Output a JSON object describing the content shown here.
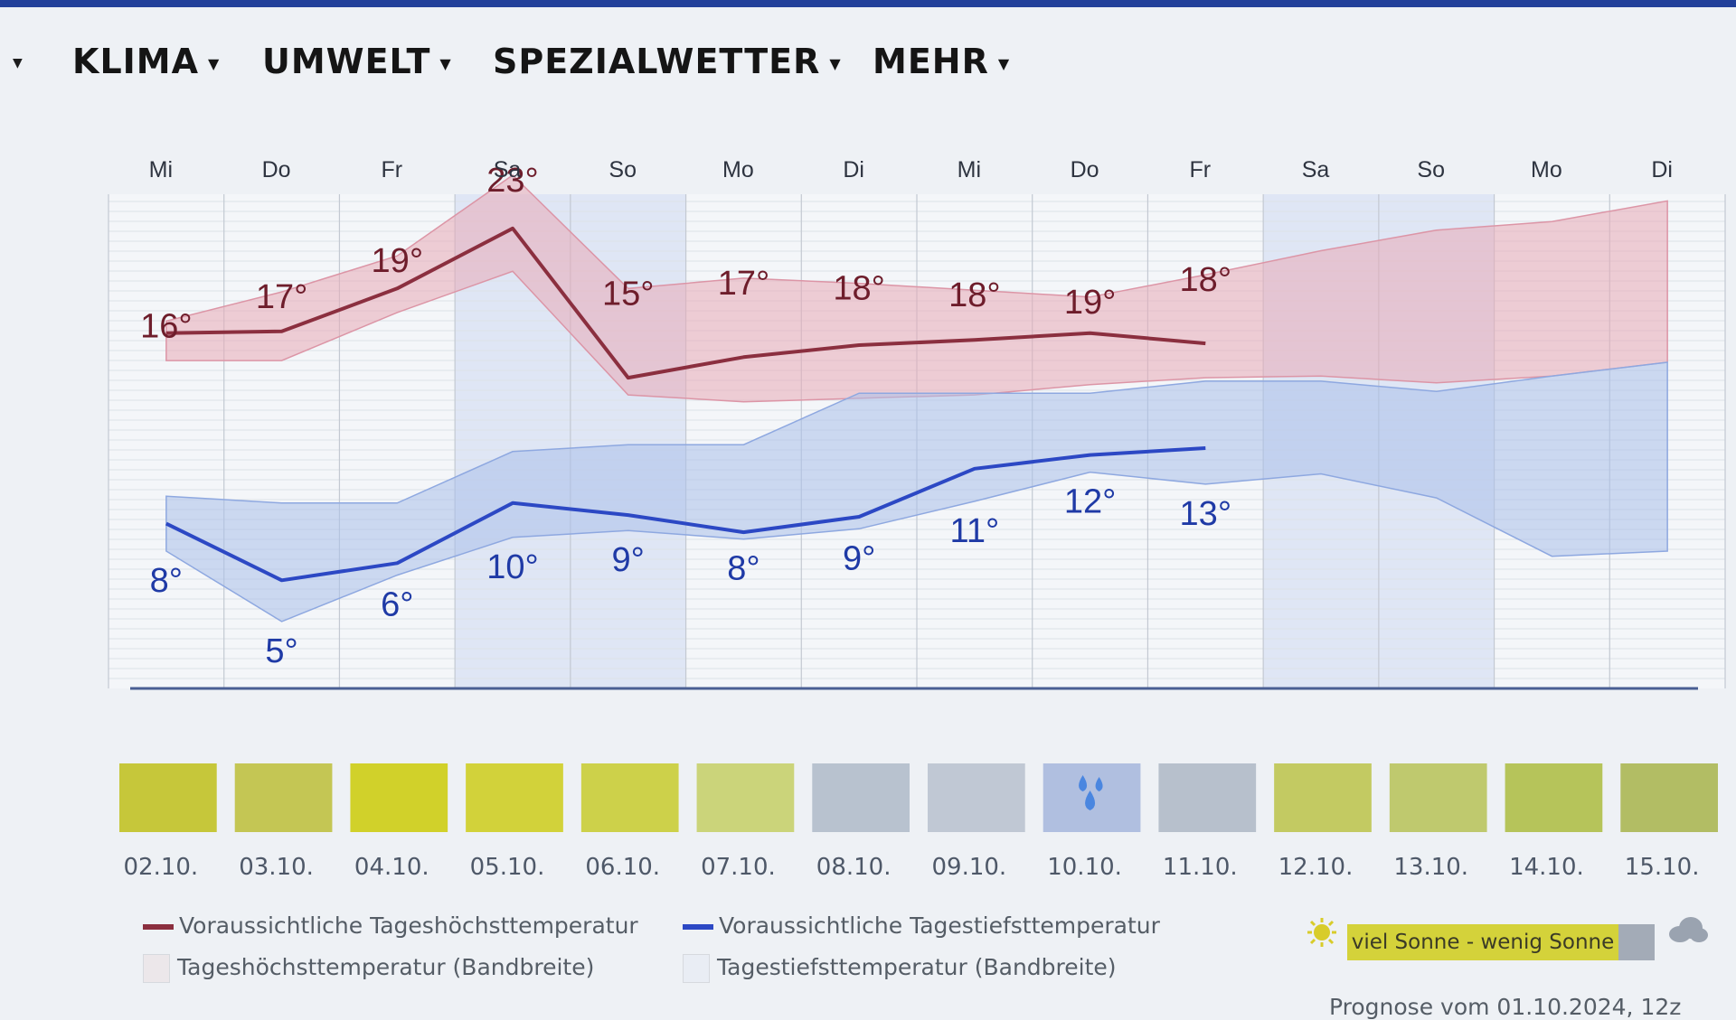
{
  "nav": {
    "items": [
      "KLIMA",
      "UMWELT",
      "SPEZIALWETTER",
      "MEHR"
    ]
  },
  "chart_data": {
    "type": "line",
    "days": [
      "Mi",
      "Do",
      "Fr",
      "Sa",
      "So",
      "Mo",
      "Di",
      "Mi",
      "Do",
      "Fr",
      "Sa",
      "So",
      "Mo",
      "Di"
    ],
    "dates": [
      "02.10.",
      "03.10.",
      "04.10.",
      "05.10.",
      "06.10.",
      "07.10.",
      "08.10.",
      "09.10.",
      "10.10.",
      "11.10.",
      "12.10.",
      "13.10.",
      "14.10.",
      "15.10."
    ],
    "weekend_indices": [
      3,
      4,
      10,
      11
    ],
    "y_unit": "°C",
    "ylim": [
      -5,
      35
    ],
    "series": [
      {
        "name": "Voraussichtliche Tageshöchsttemperatur",
        "color": "#8b2f3f",
        "values": [
          16,
          17,
          19,
          23,
          15,
          17,
          18,
          18,
          19,
          18,
          null,
          null,
          null,
          null
        ],
        "line_values": [
          15.7,
          15.8,
          18.3,
          21.8,
          13.1,
          14.3,
          15.0,
          15.3,
          15.7,
          15.1,
          null,
          null,
          null,
          null
        ]
      },
      {
        "name": "Voraussichtliche Tagestiefsttemperatur",
        "color": "#2c48c4",
        "values": [
          8,
          5,
          6,
          10,
          9,
          8,
          9,
          11,
          12,
          13,
          null,
          null,
          null,
          null
        ],
        "line_values": [
          4.6,
          1.3,
          2.3,
          5.8,
          5.1,
          4.1,
          5.0,
          7.8,
          8.6,
          9.0,
          null,
          null,
          null,
          null
        ]
      }
    ],
    "bands": [
      {
        "name": "Tageshöchsttemperatur (Bandbreite)",
        "color": "#e7a9b7",
        "upper": [
          16.4,
          18.1,
          20.2,
          24.9,
          18.3,
          18.9,
          18.6,
          18.2,
          17.8,
          19.1,
          20.5,
          21.7,
          22.2,
          23.4
        ],
        "lower": [
          14.1,
          14.1,
          16.9,
          19.3,
          12.1,
          11.7,
          11.9,
          12.1,
          12.7,
          13.1,
          13.2,
          12.8,
          13.2,
          14.0
        ]
      },
      {
        "name": "Tagestiefsttemperatur (Bandbreite)",
        "color": "#aac0ea",
        "upper": [
          6.2,
          5.8,
          5.8,
          8.8,
          9.2,
          9.2,
          12.2,
          12.2,
          12.2,
          12.9,
          12.9,
          12.3,
          13.2,
          14.0
        ],
        "lower": [
          3.0,
          -1.1,
          1.6,
          3.8,
          4.2,
          3.7,
          4.3,
          5.9,
          7.6,
          6.9,
          7.5,
          6.1,
          2.7,
          3.0
        ]
      }
    ],
    "sunshine": {
      "colors": [
        "#c6c73a",
        "#c4c654",
        "#d1d12a",
        "#d2d23a",
        "#cdd14a",
        "#cbd47a",
        "#b8c2cf",
        "#c0c8d4",
        "#b0bfe0",
        "#b7c0cc",
        "#c3ca62",
        "#bfc96e",
        "#b6c45a",
        "#b2bd64"
      ],
      "rain_day_index": 8
    },
    "legend_placement": "bottom"
  },
  "legend": {
    "max_line": "Voraussichtliche Tageshöchsttemperatur",
    "min_line": "Voraussichtliche Tagestiefsttemperatur",
    "max_band": "Tageshöchsttemperatur (Bandbreite)",
    "min_band": "Tagestiefsttemperatur (Bandbreite)",
    "sun_scale": "viel Sonne - wenig Sonne"
  },
  "footnote": "Prognose vom 01.10.2024, 12z"
}
